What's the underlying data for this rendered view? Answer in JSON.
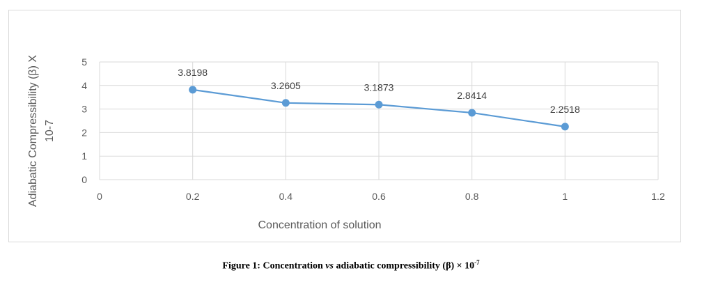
{
  "chart_data": {
    "type": "line",
    "x": [
      0.2,
      0.4,
      0.6,
      0.8,
      1
    ],
    "series": [
      {
        "values": [
          3.8198,
          3.2605,
          3.1873,
          2.8414,
          2.2518
        ]
      }
    ],
    "data_labels": [
      "3.8198",
      "3.2605",
      "3.1873",
      "2.8414",
      "2.2518"
    ],
    "xlabel": "Concentration of solution",
    "ylabel_line1": "Adiabatic Compressibility (β) X",
    "ylabel_line2": "10-7",
    "xlim": [
      0,
      1.2
    ],
    "ylim": [
      0,
      5
    ],
    "x_ticks": [
      "0",
      "0.2",
      "0.4",
      "0.6",
      "0.8",
      "1",
      "1.2"
    ],
    "y_ticks": [
      "0",
      "1",
      "2",
      "3",
      "4",
      "5"
    ],
    "grid": true,
    "line_color": "#5b9bd5",
    "grid_color": "#d9d9d9"
  },
  "caption": {
    "prefix": "Figure 1: Concentration ",
    "emphasis": "vs",
    "middle": " adiabatic compressibility (β) × 10",
    "superscript": "-7"
  }
}
